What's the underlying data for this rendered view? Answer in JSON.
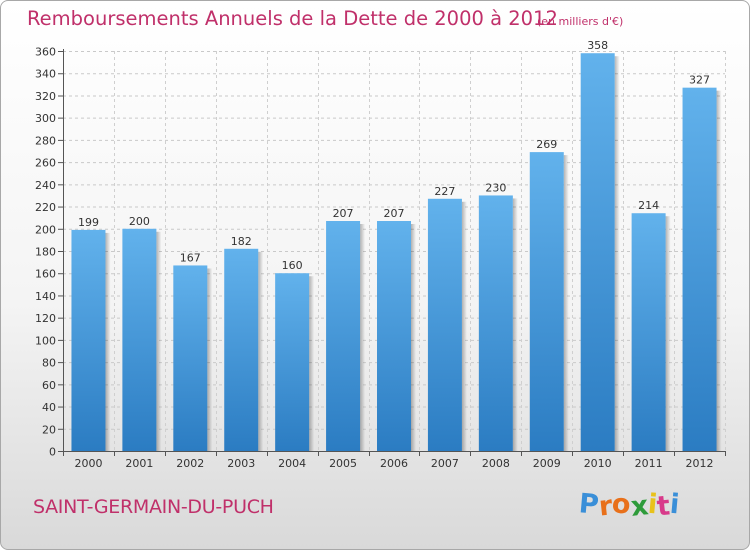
{
  "header": {
    "title": "Remboursements Annuels de la Dette de 2000 à 2012",
    "subtitle": "(en milliers d'€)"
  },
  "footer": {
    "commune": "SAINT-GERMAIN-DU-PUCH",
    "logo_text": "Proxiti"
  },
  "colors": {
    "title": "#c0306a",
    "bar_top": "#62b2ec",
    "bar_bottom": "#2b7cc2",
    "logo_letters": [
      "#3a8fd8",
      "#e8701a",
      "#e8701a",
      "#2e9b3a",
      "#e8c21a",
      "#d83a8a",
      "#3a8fd8"
    ]
  },
  "chart_data": {
    "type": "bar",
    "categories": [
      "2000",
      "2001",
      "2002",
      "2003",
      "2004",
      "2005",
      "2006",
      "2007",
      "2008",
      "2009",
      "2010",
      "2011",
      "2012"
    ],
    "values": [
      199,
      200,
      167,
      182,
      160,
      207,
      207,
      227,
      230,
      269,
      358,
      214,
      327
    ],
    "title": "Remboursements Annuels de la Dette de 2000 à 2012",
    "xlabel": "",
    "ylabel": "",
    "ylim": [
      0,
      360
    ],
    "yticks": [
      0,
      20,
      40,
      60,
      80,
      100,
      120,
      140,
      160,
      180,
      200,
      220,
      240,
      260,
      280,
      300,
      320,
      340,
      360
    ],
    "grid": true,
    "legend": "none",
    "data_labels": true
  }
}
